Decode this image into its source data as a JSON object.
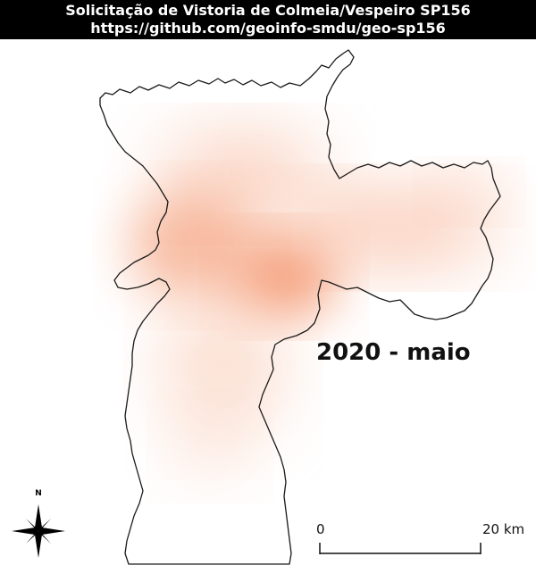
{
  "header": {
    "title": "Solicitação de Vistoria de Colmeia/Vespeiro SP156",
    "url": "https://github.com/geoinfo-smdu/geo-sp156"
  },
  "map": {
    "period_label": "2020 - maio",
    "north_label": "N",
    "scale": {
      "start_label": "0",
      "end_label": "20 km"
    },
    "colors": {
      "outline": "#1a1a1a",
      "heat": "#f4946a",
      "title_bg": "#000000",
      "title_text": "#ffffff"
    }
  }
}
